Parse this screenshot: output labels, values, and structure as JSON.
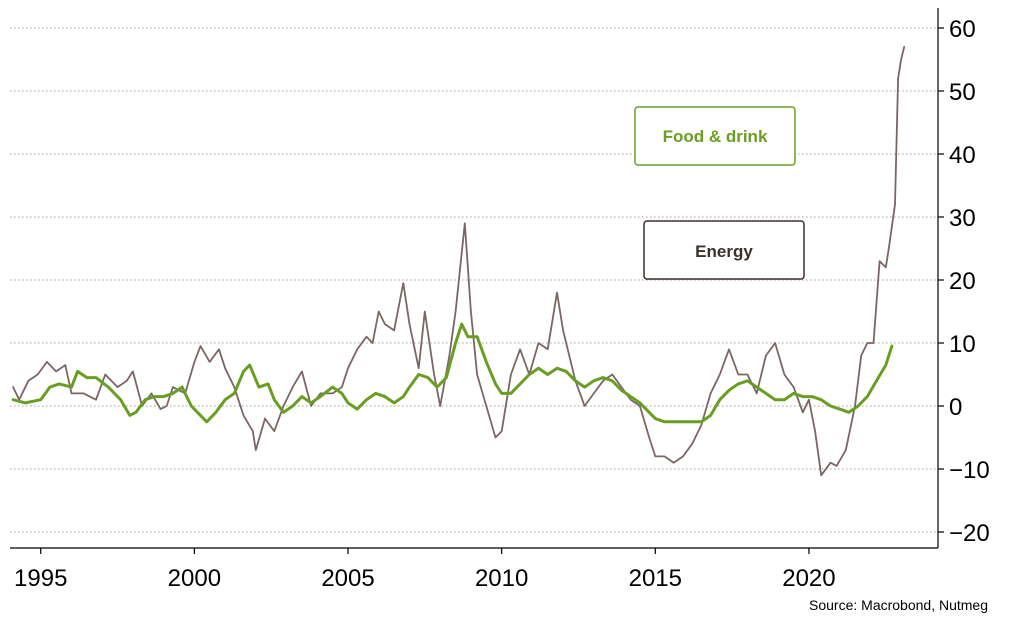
{
  "chart_data": {
    "type": "line",
    "title": "",
    "xlabel": "",
    "ylabel": "",
    "xlim": [
      1994.0,
      2024.2
    ],
    "ylim": [
      -20,
      60
    ],
    "x_ticks": [
      1995,
      2000,
      2005,
      2010,
      2015,
      2020
    ],
    "y_ticks": [
      60,
      50,
      40,
      30,
      20,
      10,
      0,
      -10,
      -20
    ],
    "grid": "horizontal dotted",
    "y_axis_position": "right",
    "series": [
      {
        "name": "Food & drink",
        "color": "#6a9e23",
        "points": [
          [
            1994.1,
            1
          ],
          [
            1994.5,
            0.5
          ],
          [
            1995.0,
            1
          ],
          [
            1995.3,
            3
          ],
          [
            1995.6,
            3.5
          ],
          [
            1996.0,
            3
          ],
          [
            1996.2,
            5.5
          ],
          [
            1996.5,
            4.5
          ],
          [
            1996.8,
            4.5
          ],
          [
            1997.2,
            3
          ],
          [
            1997.6,
            1
          ],
          [
            1997.9,
            -1.5
          ],
          [
            1998.1,
            -1
          ],
          [
            1998.4,
            1
          ],
          [
            1998.7,
            1.5
          ],
          [
            1999.0,
            1.5
          ],
          [
            1999.3,
            2
          ],
          [
            1999.6,
            3
          ],
          [
            1999.9,
            0
          ],
          [
            2000.1,
            -1
          ],
          [
            2000.4,
            -2.5
          ],
          [
            2000.7,
            -1
          ],
          [
            2001.0,
            1
          ],
          [
            2001.3,
            2
          ],
          [
            2001.6,
            5.5
          ],
          [
            2001.8,
            6.5
          ],
          [
            2002.1,
            3
          ],
          [
            2002.4,
            3.5
          ],
          [
            2002.6,
            1
          ],
          [
            2002.9,
            -1
          ],
          [
            2003.2,
            0
          ],
          [
            2003.5,
            1.5
          ],
          [
            2003.8,
            0.5
          ],
          [
            2004.1,
            1.5
          ],
          [
            2004.5,
            3
          ],
          [
            2004.8,
            2
          ],
          [
            2005.0,
            0.5
          ],
          [
            2005.3,
            -0.5
          ],
          [
            2005.6,
            1
          ],
          [
            2005.9,
            2
          ],
          [
            2006.2,
            1.5
          ],
          [
            2006.5,
            0.5
          ],
          [
            2006.8,
            1.5
          ],
          [
            2007.0,
            3
          ],
          [
            2007.3,
            5
          ],
          [
            2007.6,
            4.5
          ],
          [
            2007.9,
            3
          ],
          [
            2008.2,
            4.5
          ],
          [
            2008.5,
            10
          ],
          [
            2008.7,
            13
          ],
          [
            2008.9,
            11
          ],
          [
            2009.2,
            11
          ],
          [
            2009.5,
            7
          ],
          [
            2009.8,
            3.5
          ],
          [
            2010.0,
            2
          ],
          [
            2010.3,
            2
          ],
          [
            2010.6,
            3.5
          ],
          [
            2010.9,
            5
          ],
          [
            2011.2,
            6
          ],
          [
            2011.5,
            5
          ],
          [
            2011.8,
            6
          ],
          [
            2012.1,
            5.5
          ],
          [
            2012.4,
            4
          ],
          [
            2012.7,
            3
          ],
          [
            2013.0,
            4
          ],
          [
            2013.3,
            4.5
          ],
          [
            2013.6,
            4
          ],
          [
            2013.9,
            2.5
          ],
          [
            2014.2,
            1.5
          ],
          [
            2014.5,
            0.5
          ],
          [
            2014.8,
            -1
          ],
          [
            2015.0,
            -2
          ],
          [
            2015.3,
            -2.5
          ],
          [
            2015.6,
            -2.5
          ],
          [
            2015.9,
            -2.5
          ],
          [
            2016.2,
            -2.5
          ],
          [
            2016.5,
            -2.5
          ],
          [
            2016.8,
            -1.5
          ],
          [
            2017.1,
            1
          ],
          [
            2017.4,
            2.5
          ],
          [
            2017.7,
            3.5
          ],
          [
            2018.0,
            4
          ],
          [
            2018.3,
            3
          ],
          [
            2018.6,
            2
          ],
          [
            2018.9,
            1
          ],
          [
            2019.2,
            1
          ],
          [
            2019.5,
            2
          ],
          [
            2019.8,
            1.5
          ],
          [
            2020.1,
            1.5
          ],
          [
            2020.4,
            1
          ],
          [
            2020.7,
            0
          ],
          [
            2021.0,
            -0.5
          ],
          [
            2021.3,
            -1
          ],
          [
            2021.6,
            0
          ],
          [
            2021.9,
            1.5
          ],
          [
            2022.2,
            4
          ],
          [
            2022.5,
            6.5
          ],
          [
            2022.7,
            9.5
          ]
        ]
      },
      {
        "name": "Energy",
        "color": "#7a6663",
        "points": [
          [
            1994.1,
            3
          ],
          [
            1994.3,
            1
          ],
          [
            1994.6,
            4
          ],
          [
            1994.9,
            5
          ],
          [
            1995.2,
            7
          ],
          [
            1995.5,
            5.5
          ],
          [
            1995.8,
            6.5
          ],
          [
            1996.0,
            2
          ],
          [
            1996.4,
            2
          ],
          [
            1996.8,
            1
          ],
          [
            1997.1,
            5
          ],
          [
            1997.5,
            3
          ],
          [
            1997.8,
            4
          ],
          [
            1998.0,
            5.5
          ],
          [
            1998.3,
            0
          ],
          [
            1998.6,
            2
          ],
          [
            1998.9,
            -0.5
          ],
          [
            1999.1,
            0
          ],
          [
            1999.3,
            3
          ],
          [
            1999.7,
            2
          ],
          [
            2000.0,
            7
          ],
          [
            2000.2,
            9.5
          ],
          [
            2000.5,
            7
          ],
          [
            2000.8,
            9
          ],
          [
            2001.0,
            6
          ],
          [
            2001.3,
            3
          ],
          [
            2001.6,
            -1.5
          ],
          [
            2001.9,
            -4
          ],
          [
            2002.0,
            -7
          ],
          [
            2002.3,
            -2
          ],
          [
            2002.6,
            -4
          ],
          [
            2002.9,
            0
          ],
          [
            2003.2,
            3
          ],
          [
            2003.5,
            5.5
          ],
          [
            2003.8,
            0
          ],
          [
            2004.1,
            2
          ],
          [
            2004.5,
            2
          ],
          [
            2004.8,
            3
          ],
          [
            2005.0,
            6
          ],
          [
            2005.3,
            9
          ],
          [
            2005.6,
            11
          ],
          [
            2005.8,
            10
          ],
          [
            2006.0,
            15
          ],
          [
            2006.2,
            13
          ],
          [
            2006.5,
            12
          ],
          [
            2006.8,
            19.5
          ],
          [
            2007.0,
            13
          ],
          [
            2007.3,
            6
          ],
          [
            2007.5,
            15
          ],
          [
            2007.8,
            5
          ],
          [
            2008.0,
            0
          ],
          [
            2008.3,
            8
          ],
          [
            2008.5,
            15
          ],
          [
            2008.8,
            29
          ],
          [
            2009.0,
            15
          ],
          [
            2009.2,
            5
          ],
          [
            2009.5,
            0
          ],
          [
            2009.8,
            -5
          ],
          [
            2010.0,
            -4
          ],
          [
            2010.3,
            5
          ],
          [
            2010.6,
            9
          ],
          [
            2010.9,
            5
          ],
          [
            2011.2,
            10
          ],
          [
            2011.5,
            9
          ],
          [
            2011.8,
            18
          ],
          [
            2012.0,
            12
          ],
          [
            2012.4,
            4
          ],
          [
            2012.7,
            0
          ],
          [
            2013.0,
            2
          ],
          [
            2013.3,
            4
          ],
          [
            2013.6,
            5
          ],
          [
            2013.9,
            3
          ],
          [
            2014.2,
            1
          ],
          [
            2014.5,
            0
          ],
          [
            2014.8,
            -5
          ],
          [
            2015.0,
            -8
          ],
          [
            2015.3,
            -8
          ],
          [
            2015.6,
            -9
          ],
          [
            2015.9,
            -8
          ],
          [
            2016.2,
            -6
          ],
          [
            2016.5,
            -3
          ],
          [
            2016.8,
            2
          ],
          [
            2017.1,
            5
          ],
          [
            2017.4,
            9
          ],
          [
            2017.7,
            5
          ],
          [
            2018.0,
            5
          ],
          [
            2018.3,
            2
          ],
          [
            2018.6,
            8
          ],
          [
            2018.9,
            10
          ],
          [
            2019.2,
            5
          ],
          [
            2019.5,
            3
          ],
          [
            2019.8,
            -1
          ],
          [
            2020.0,
            1
          ],
          [
            2020.2,
            -4
          ],
          [
            2020.4,
            -11
          ],
          [
            2020.7,
            -9
          ],
          [
            2020.9,
            -9.5
          ],
          [
            2021.2,
            -7
          ],
          [
            2021.5,
            0
          ],
          [
            2021.7,
            8
          ],
          [
            2021.9,
            10
          ],
          [
            2022.1,
            10
          ],
          [
            2022.3,
            23
          ],
          [
            2022.5,
            22
          ],
          [
            2022.6,
            25
          ],
          [
            2022.8,
            32
          ],
          [
            2022.9,
            52
          ],
          [
            2023.0,
            55
          ],
          [
            2023.1,
            57
          ]
        ]
      }
    ],
    "legend": [
      {
        "label": "Food & drink",
        "series": "Food & drink",
        "placement": "upper-right"
      },
      {
        "label": "Energy",
        "series": "Energy",
        "placement": "right"
      }
    ],
    "annotations": {
      "source": "Source: Macrobond, Nutmeg"
    }
  }
}
